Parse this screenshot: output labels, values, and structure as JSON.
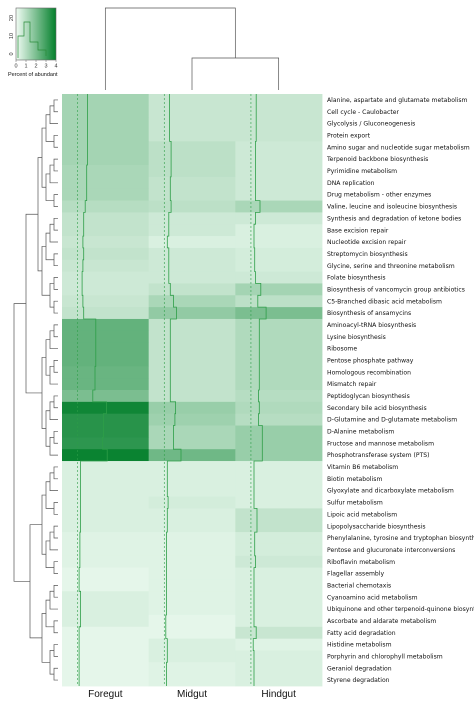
{
  "chart_data": {
    "type": "heatmap",
    "columns": [
      "Foregut",
      "Midgut",
      "Hindgut"
    ],
    "rows": [
      "Alanine, aspartate and glutamate metabolism",
      "Cell cycle - Caulobacter",
      "Glycolysis / Gluconeogenesis",
      "Protein export",
      "Amino sugar and nucleotide sugar metabolism",
      "Terpenoid backbone biosynthesis",
      "Pyrimidine metabolism",
      "DNA replication",
      "Drug metabolism - other enzymes",
      "Valine, leucine and isoleucine biosynthesis",
      "Synthesis and degradation of ketone bodies",
      "Base excision repair",
      "Nucleotide excision repair",
      "Streptomycin biosynthesis",
      "Glycine, serine and threonine metabolism",
      "Folate biosynthesis",
      "Biosynthesis of vancomycin group antibiotics",
      "C5-Branched dibasic acid metabolism",
      "Biosynthesis of ansamycins",
      "Aminoacyl-tRNA biosynthesis",
      "Lysine biosynthesis",
      "Ribosome",
      "Pentose phosphate pathway",
      "Homologous recombination",
      "Mismatch repair",
      "Peptidoglycan biosynthesis",
      "Secondary bile acid biosynthesis",
      "D-Glutamine and D-glutamate metabolism",
      "D-Alanine metabolism",
      "Fructose and mannose metabolism",
      "Phosphotransferase system (PTS)",
      "Vitamin B6 metabolism",
      "Biotin metabolism",
      "Glyoxylate and dicarboxylate metabolism",
      "Sulfur metabolism",
      "Lipoic acid metabolism",
      "Lipopolysaccharide biosynthesis",
      "Phenylalanine, tyrosine and tryptophan biosynthesis",
      "Pentose and glucuronate interconversions",
      "Riboflavin metabolism",
      "Flagellar assembly",
      "Bacterial chemotaxis",
      "Cyanoamino acid metabolism",
      "Ubiquinone and other terpenoid-quinone biosynthesis",
      "Ascorbate and aldarate metabolism",
      "Fatty acid degradation",
      "Histidine metabolism",
      "Porphyrin and chlorophyll metabolism",
      "Geraniol degradation",
      "Styrene degradation"
    ],
    "values": [
      [
        1.3,
        0.7,
        0.7
      ],
      [
        1.3,
        0.7,
        0.7
      ],
      [
        1.3,
        0.7,
        0.7
      ],
      [
        1.3,
        0.7,
        0.7
      ],
      [
        1.3,
        0.9,
        0.6
      ],
      [
        1.3,
        0.9,
        0.6
      ],
      [
        1.2,
        0.9,
        0.6
      ],
      [
        1.2,
        0.8,
        0.6
      ],
      [
        1.2,
        0.8,
        0.6
      ],
      [
        1.0,
        0.9,
        1.2
      ],
      [
        0.8,
        0.6,
        0.6
      ],
      [
        0.8,
        0.6,
        0.4
      ],
      [
        0.7,
        0.4,
        0.4
      ],
      [
        0.8,
        0.6,
        0.5
      ],
      [
        0.7,
        0.6,
        0.5
      ],
      [
        0.6,
        0.6,
        0.6
      ],
      [
        0.6,
        0.8,
        1.3
      ],
      [
        0.7,
        1.2,
        0.9
      ],
      [
        0.8,
        1.6,
        2.0
      ],
      [
        2.4,
        0.8,
        1.1
      ],
      [
        2.4,
        0.8,
        1.1
      ],
      [
        2.4,
        0.8,
        1.1
      ],
      [
        2.4,
        0.8,
        1.1
      ],
      [
        2.3,
        0.8,
        1.1
      ],
      [
        2.3,
        0.8,
        1.1
      ],
      [
        2.0,
        0.8,
        1.0
      ],
      [
        3.8,
        1.5,
        1.1
      ],
      [
        3.4,
        1.4,
        1.0
      ],
      [
        3.4,
        1.2,
        1.5
      ],
      [
        3.3,
        1.2,
        1.5
      ],
      [
        3.9,
        2.2,
        1.5
      ],
      [
        0.4,
        0.4,
        0.4
      ],
      [
        0.4,
        0.4,
        0.4
      ],
      [
        0.4,
        0.4,
        0.4
      ],
      [
        0.4,
        0.5,
        0.4
      ],
      [
        0.4,
        0.4,
        0.8
      ],
      [
        0.4,
        0.4,
        0.8
      ],
      [
        0.3,
        0.3,
        0.5
      ],
      [
        0.3,
        0.3,
        0.5
      ],
      [
        0.3,
        0.3,
        0.6
      ],
      [
        0.2,
        0.3,
        0.4
      ],
      [
        0.2,
        0.3,
        0.4
      ],
      [
        0.4,
        0.3,
        0.4
      ],
      [
        0.4,
        0.3,
        0.4
      ],
      [
        0.4,
        0.2,
        0.4
      ],
      [
        0.2,
        0.2,
        0.7
      ],
      [
        0.2,
        0.4,
        0.3
      ],
      [
        0.2,
        0.4,
        0.4
      ],
      [
        0.2,
        0.3,
        0.4
      ],
      [
        0.2,
        0.3,
        0.4
      ]
    ],
    "color_range": [
      0,
      4
    ],
    "color_low": "#f1fcf4",
    "color_high": "#04802c",
    "trace_color": "#2e9e48",
    "color_key": {
      "title": "Percent of abundant",
      "ticks": [
        "0",
        "1",
        "2",
        "3",
        "4"
      ],
      "hist_ticks": [
        "0",
        "10",
        "20"
      ]
    },
    "dendrogram": "hierarchical clustering on rows and columns",
    "grid": false
  }
}
